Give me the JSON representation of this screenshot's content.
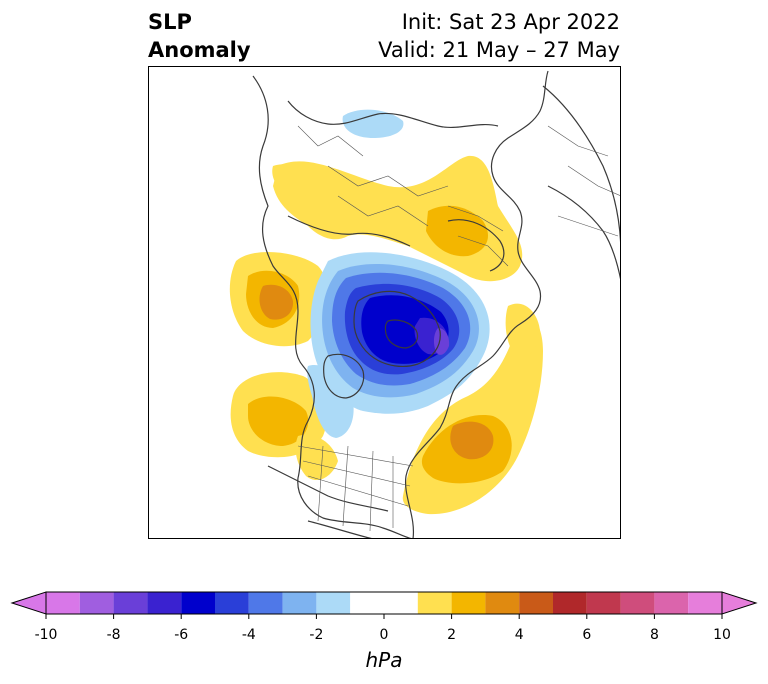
{
  "title": {
    "variable_line1": "SLP",
    "variable_line2": "Anomaly",
    "init": "Init: Sat 23 Apr 2022",
    "valid": "Valid: 21 May – 27 May"
  },
  "colorbar": {
    "unit": "hPa",
    "tick_labels": [
      "-10",
      "-8",
      "-6",
      "-4",
      "-2",
      "0",
      "2",
      "4",
      "6",
      "8",
      "10"
    ],
    "levels": [
      -10,
      -9,
      -8,
      -7,
      -6,
      -5,
      -4,
      -3,
      -2,
      -1,
      1,
      2,
      3,
      4,
      5,
      6,
      7,
      8,
      9,
      10
    ],
    "colors": [
      "#d877e8",
      "#a05ee0",
      "#6a3fd8",
      "#3a22d0",
      "#0000cc",
      "#2a3fd8",
      "#4f78e8",
      "#7eb3f0",
      "#acdaf7",
      "#ffffff",
      "#ffe050",
      "#f3b600",
      "#e08a10",
      "#c95a18",
      "#b0282a",
      "#c0384e",
      "#cf4d7c",
      "#db64ac",
      "#e67edb"
    ],
    "extend": "both"
  },
  "map": {
    "projection": "north-polar-stereographic",
    "anomalies": [
      {
        "name": "arctic-low",
        "min_hpa": -7,
        "sign": "negative"
      },
      {
        "name": "north-pacific-high",
        "max_hpa": 3,
        "sign": "positive"
      },
      {
        "name": "east-pacific-high",
        "max_hpa": 2,
        "sign": "positive"
      },
      {
        "name": "north-atlantic-high",
        "max_hpa": 3,
        "sign": "positive"
      },
      {
        "name": "eurasia-high",
        "max_hpa": 2,
        "sign": "positive"
      },
      {
        "name": "central-asia-low",
        "min_hpa": -2,
        "sign": "negative"
      }
    ]
  }
}
